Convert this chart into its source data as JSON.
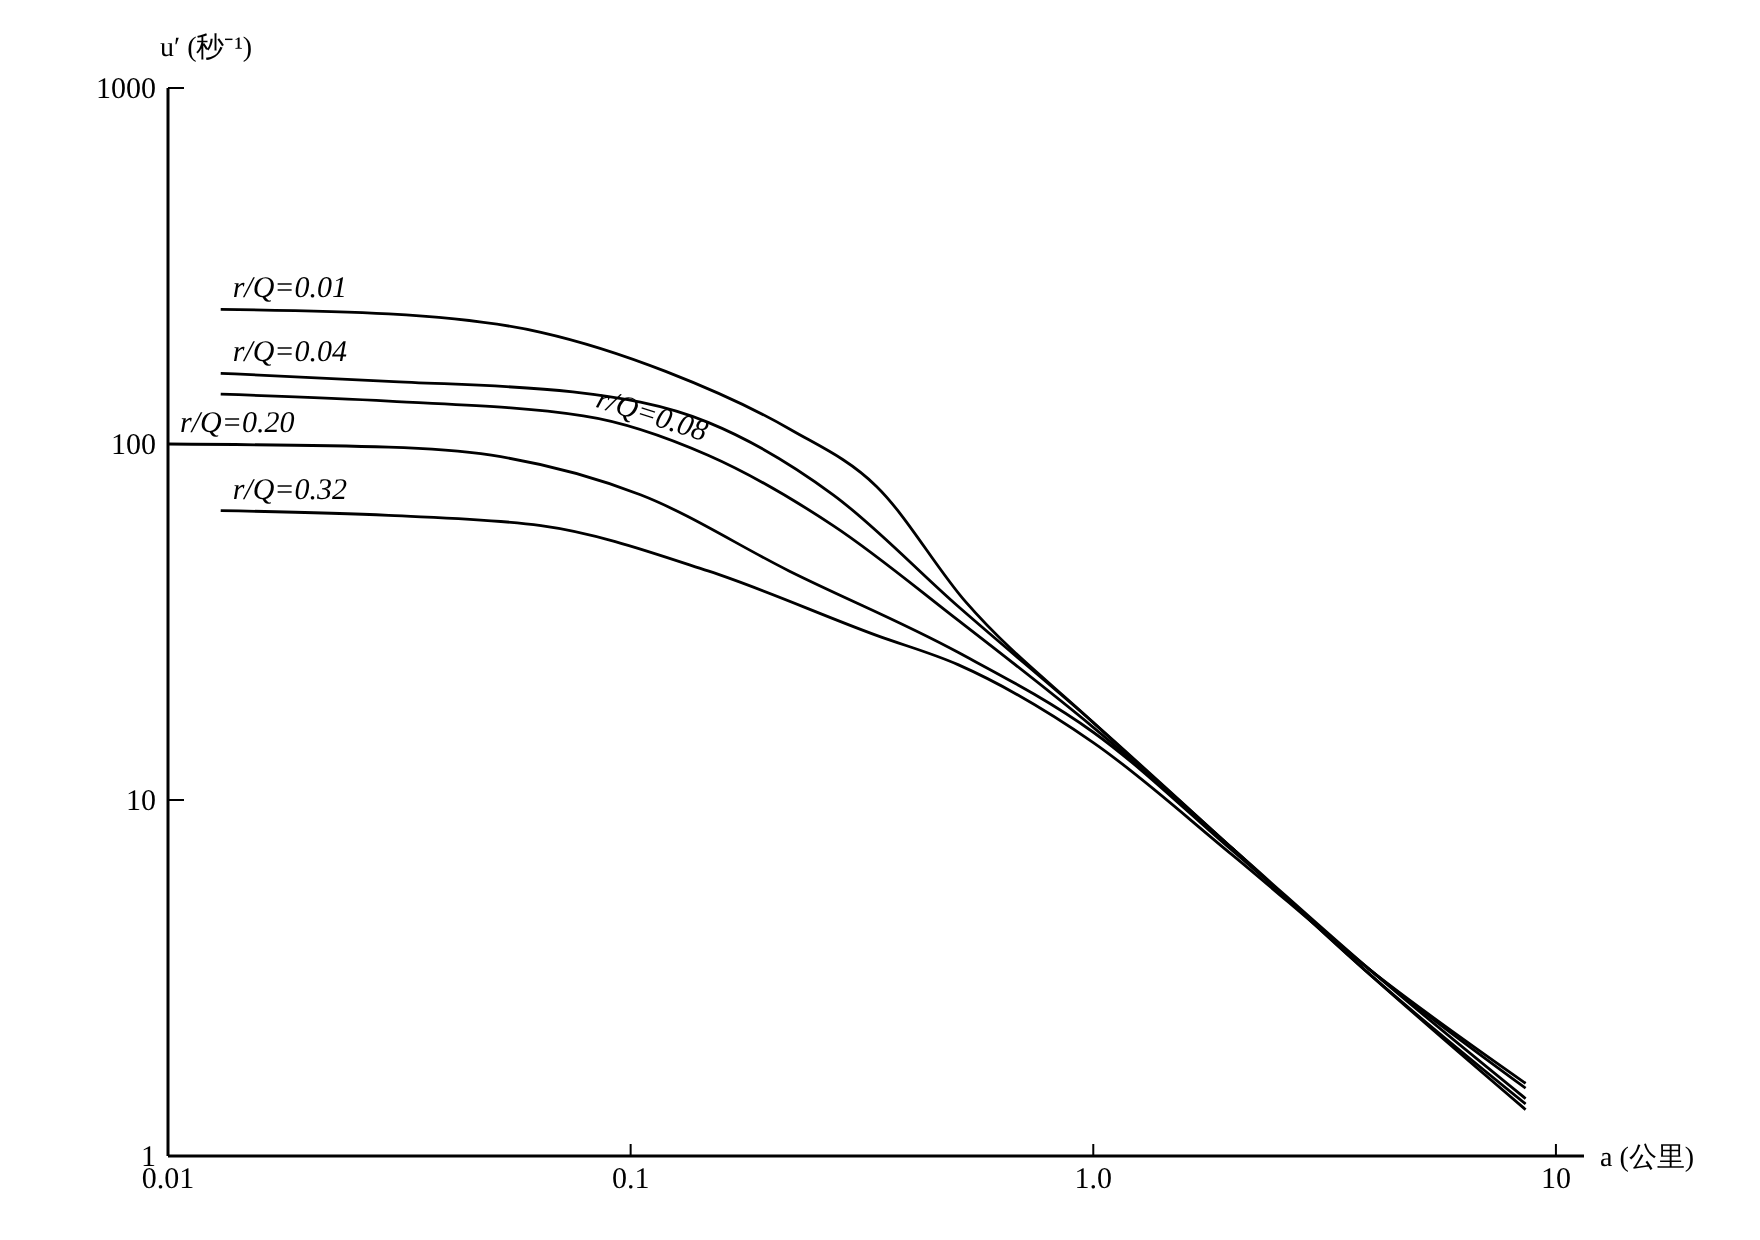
{
  "chart_data": {
    "type": "line",
    "xlabel": "a (公里)",
    "ylabel": "u′ (秒⁻¹)",
    "log": "xy",
    "grid": false,
    "marker": "none",
    "line_style": "solid",
    "xlim": [
      0.01,
      11.5
    ],
    "xticks": [
      0.01,
      0.1,
      {
        "value": 1,
        "label": "1.0"
      },
      10
    ],
    "ylim": [
      1,
      1000
    ],
    "yticks": [
      1,
      10,
      100,
      1000
    ],
    "series": [
      {
        "name": "r/Q=0.01",
        "color": "#000000",
        "x": [
          0.013,
          0.03,
          0.064,
          0.119,
          0.221,
          0.34,
          0.53,
          1.0,
          2.0,
          4.0,
          8.6
        ],
        "values": [
          239,
          232,
          206,
          160,
          110,
          76,
          36,
          16.5,
          7.3,
          3.2,
          1.35
        ]
      },
      {
        "name": "r/Q=0.04",
        "color": "#000000",
        "x": [
          0.013,
          0.03,
          0.075,
          0.147,
          0.274,
          0.51,
          1.0,
          2.0,
          4.0,
          8.6
        ],
        "values": [
          158,
          150,
          140,
          115,
          72,
          35,
          16.5,
          7.3,
          3.2,
          1.4
        ]
      },
      {
        "name": "r/Q=0.08",
        "color": "#000000",
        "x": [
          0.013,
          0.03,
          0.079,
          0.147,
          0.274,
          0.51,
          1.0,
          2.0,
          4.0,
          8.6
        ],
        "values": [
          138,
          132,
          120,
          93,
          59,
          32,
          16,
          7.3,
          3.3,
          1.45
        ]
      },
      {
        "name": "r/Q=0.20",
        "color": "#000000",
        "x": [
          0.01,
          0.03,
          0.05,
          0.105,
          0.22,
          0.51,
          1.0,
          2.0,
          4.0,
          8.6
        ],
        "values": [
          100,
          98,
          93,
          72,
          44,
          26,
          15.5,
          7.2,
          3.3,
          1.55
        ]
      },
      {
        "name": "r/Q=0.32",
        "color": "#000000",
        "x": [
          0.013,
          0.03,
          0.064,
          0.147,
          0.34,
          0.51,
          1.0,
          2.0,
          4.0,
          8.6
        ],
        "values": [
          65,
          63,
          59,
          44,
          29,
          24,
          14.5,
          7.0,
          3.3,
          1.6
        ]
      }
    ]
  }
}
